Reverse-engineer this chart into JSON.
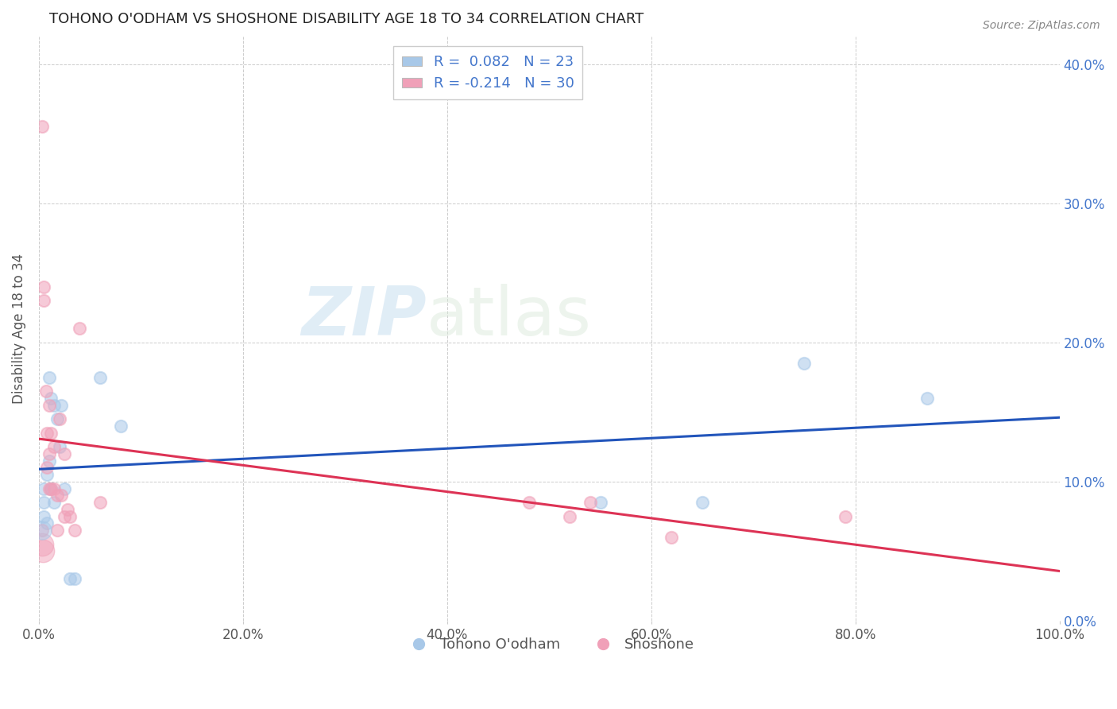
{
  "title": "TOHONO O'ODHAM VS SHOSHONE DISABILITY AGE 18 TO 34 CORRELATION CHART",
  "source": "Source: ZipAtlas.com",
  "ylabel": "Disability Age 18 to 34",
  "xlim": [
    0,
    1.0
  ],
  "ylim": [
    0,
    0.42
  ],
  "xticks": [
    0.0,
    0.2,
    0.4,
    0.6,
    0.8,
    1.0
  ],
  "yticks": [
    0.0,
    0.1,
    0.2,
    0.3,
    0.4
  ],
  "blue_color": "#a8c8e8",
  "pink_color": "#f0a0b8",
  "blue_line_color": "#2255bb",
  "pink_line_color": "#dd3355",
  "R_blue": 0.082,
  "N_blue": 23,
  "R_pink": -0.214,
  "N_pink": 30,
  "legend_label_blue": "Tohono O'odham",
  "legend_label_pink": "Shoshone",
  "watermark_zip": "ZIP",
  "watermark_atlas": "atlas",
  "blue_x": [
    0.005,
    0.005,
    0.005,
    0.008,
    0.008,
    0.01,
    0.01,
    0.012,
    0.012,
    0.015,
    0.015,
    0.018,
    0.02,
    0.022,
    0.025,
    0.03,
    0.035,
    0.06,
    0.08,
    0.55,
    0.65,
    0.75,
    0.87
  ],
  "blue_y": [
    0.095,
    0.085,
    0.075,
    0.105,
    0.07,
    0.175,
    0.115,
    0.16,
    0.095,
    0.155,
    0.085,
    0.145,
    0.125,
    0.155,
    0.095,
    0.03,
    0.03,
    0.175,
    0.14,
    0.085,
    0.085,
    0.185,
    0.16
  ],
  "pink_x": [
    0.003,
    0.003,
    0.005,
    0.005,
    0.007,
    0.008,
    0.008,
    0.01,
    0.01,
    0.01,
    0.012,
    0.012,
    0.015,
    0.015,
    0.018,
    0.018,
    0.02,
    0.022,
    0.025,
    0.025,
    0.028,
    0.03,
    0.035,
    0.04,
    0.06,
    0.48,
    0.52,
    0.54,
    0.62,
    0.79
  ],
  "pink_y": [
    0.355,
    0.065,
    0.24,
    0.23,
    0.165,
    0.135,
    0.11,
    0.155,
    0.12,
    0.095,
    0.135,
    0.095,
    0.125,
    0.095,
    0.09,
    0.065,
    0.145,
    0.09,
    0.12,
    0.075,
    0.08,
    0.075,
    0.065,
    0.21,
    0.085,
    0.085,
    0.075,
    0.085,
    0.06,
    0.075
  ],
  "bg_color": "#ffffff",
  "grid_color": "#cccccc",
  "title_color": "#222222",
  "axis_label_color": "#555555",
  "right_tick_color": "#4477cc",
  "dot_size": 120,
  "dot_alpha": 0.55,
  "dot_edge_width": 1.5
}
